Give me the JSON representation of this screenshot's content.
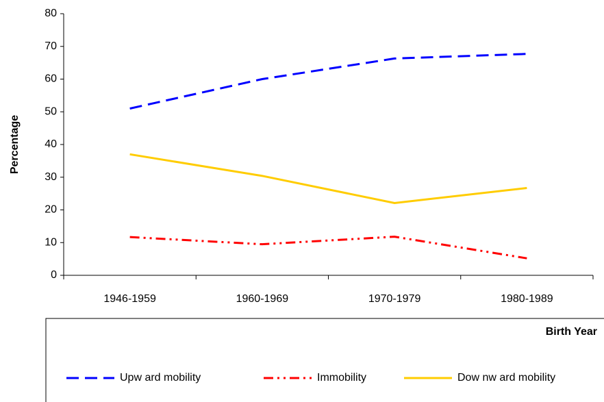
{
  "chart_data": {
    "type": "line",
    "categories": [
      "1946-1959",
      "1960-1969",
      "1970-1979",
      "1980-1989"
    ],
    "series": [
      {
        "name": "Upw ard mobility",
        "color": "#0000ff",
        "dash": "dashed",
        "values": [
          51,
          60,
          66.3,
          67.7
        ]
      },
      {
        "name": "Immobility",
        "color": "#ff0000",
        "dash": "dash-dot-dot",
        "values": [
          11.7,
          9.5,
          11.8,
          5.2
        ]
      },
      {
        "name": "Dow nw ard mobility",
        "color": "#ffcc00",
        "dash": "solid",
        "values": [
          37,
          30.4,
          22.1,
          26.7
        ]
      }
    ],
    "ylim": [
      0,
      80
    ],
    "yticks": [
      0,
      10,
      20,
      30,
      40,
      50,
      60,
      70,
      80
    ],
    "y_label": "Percentage",
    "x_label": "Birth Year",
    "grid": false,
    "legend": "bottom"
  }
}
